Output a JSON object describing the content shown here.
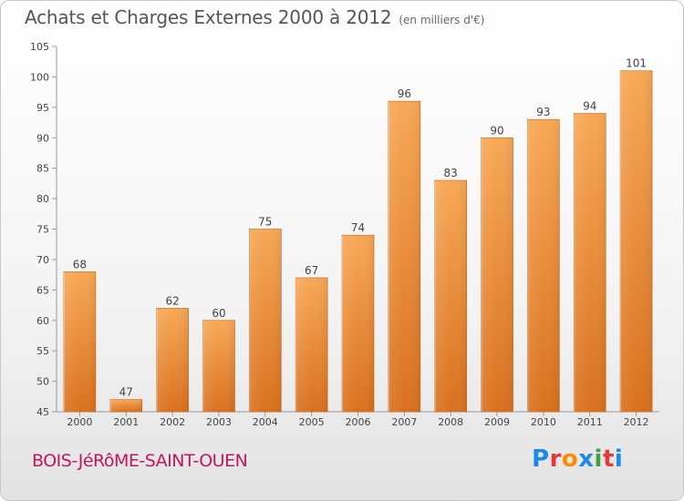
{
  "header": {
    "title": "Achats et Charges Externes 2000 à 2012",
    "unit": "(en milliers d'€)"
  },
  "footer": {
    "commune": "BOIS-JéRôME-SAINT-OUEN",
    "brand": {
      "letters": [
        "P",
        "r",
        "o",
        "x",
        "i",
        "t",
        "i"
      ],
      "colors": [
        "#1e88e5",
        "#e53935",
        "#fb8c00",
        "#1e88e5",
        "#43a047",
        "#e53935",
        "#1e88e5"
      ]
    }
  },
  "chart_data": {
    "type": "bar",
    "categories": [
      "2000",
      "2001",
      "2002",
      "2003",
      "2004",
      "2005",
      "2006",
      "2007",
      "2008",
      "2009",
      "2010",
      "2011",
      "2012"
    ],
    "values": [
      68,
      47,
      62,
      60,
      75,
      67,
      74,
      96,
      83,
      90,
      93,
      94,
      101
    ],
    "title": "Achats et Charges Externes 2000 à 2012",
    "ylim": [
      45,
      105
    ],
    "yticks": [
      45,
      50,
      55,
      60,
      65,
      70,
      75,
      80,
      85,
      90,
      95,
      100,
      105
    ],
    "grid": false,
    "data_labels": true,
    "bar_color": "#f0a050"
  }
}
